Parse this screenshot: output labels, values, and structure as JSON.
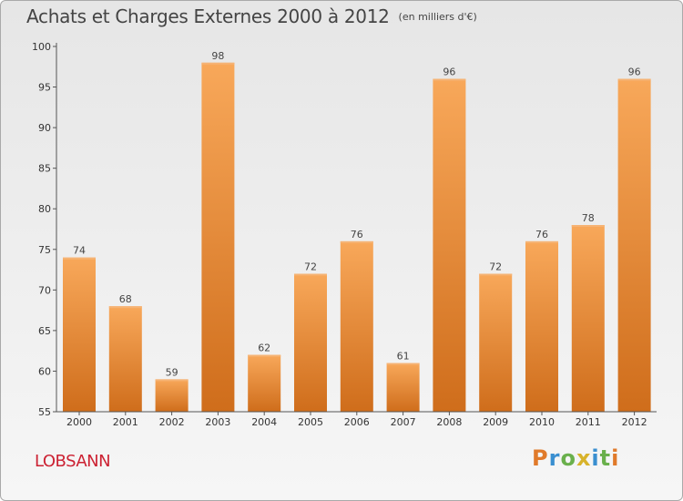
{
  "title": "Achats et Charges Externes 2000 à 2012",
  "unit": "(en milliers d'€)",
  "commune": "LOBSANN",
  "logo": {
    "text": "Proxiti",
    "letters": [
      "P",
      "r",
      "o",
      "x",
      "i",
      "t",
      "i"
    ],
    "colors": [
      "#e07a2a",
      "#3a8fd0",
      "#6ab04c",
      "#d8b32b",
      "#3a8fd0",
      "#6ab04c",
      "#e07a2a"
    ]
  },
  "colors": {
    "bar_top": "#f8a85a",
    "bar_bottom": "#cf6d1b",
    "axis": "#555555",
    "commune": "#cc2233"
  },
  "chart_data": {
    "type": "bar",
    "title": "Achats et Charges Externes 2000 à 2012",
    "subtitle": "(en milliers d'€)",
    "categories": [
      "2000",
      "2001",
      "2002",
      "2003",
      "2004",
      "2005",
      "2006",
      "2007",
      "2008",
      "2009",
      "2010",
      "2011",
      "2012"
    ],
    "values": [
      74,
      68,
      59,
      98,
      62,
      72,
      76,
      61,
      96,
      72,
      76,
      78,
      96
    ],
    "ylim": [
      55,
      100
    ],
    "yticks": [
      55,
      60,
      65,
      70,
      75,
      80,
      85,
      90,
      95,
      100
    ],
    "grid": false,
    "legend": "none"
  }
}
